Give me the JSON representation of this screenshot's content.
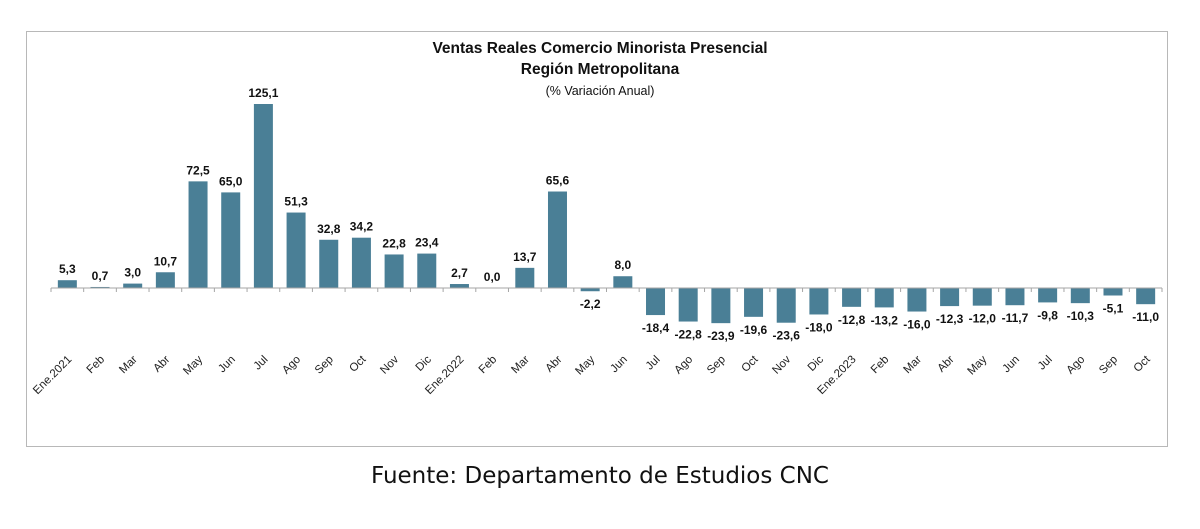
{
  "chart_data": {
    "type": "bar",
    "title": "Ventas Reales Comercio Minorista Presencial",
    "subtitle": "Región Metropolitana",
    "unit_label": "(% Variación Anual)",
    "xlabel": "",
    "ylabel": "",
    "grid": false,
    "legend": "none",
    "bar_color": "#4a7f96",
    "categories": [
      "Ene.2021",
      "Feb",
      "Mar",
      "Abr",
      "May",
      "Jun",
      "Jul",
      "Ago",
      "Sep",
      "Oct",
      "Nov",
      "Dic",
      "Ene.2022",
      "Feb",
      "Mar",
      "Abr",
      "May",
      "Jun",
      "Jul",
      "Ago",
      "Sep",
      "Oct",
      "Nov",
      "Dic",
      "Ene.2023",
      "Feb",
      "Mar",
      "Abr",
      "May",
      "Jun",
      "Jul",
      "Ago",
      "Sep",
      "Oct"
    ],
    "values": [
      5.3,
      0.7,
      3.0,
      10.7,
      72.5,
      65.0,
      125.1,
      51.3,
      32.8,
      34.2,
      22.8,
      23.4,
      2.7,
      0.0,
      13.7,
      65.6,
      -2.2,
      8.0,
      -18.4,
      -22.8,
      -23.9,
      -19.6,
      -23.6,
      -18.0,
      -12.8,
      -13.2,
      -16.0,
      -12.3,
      -12.0,
      -11.7,
      -9.8,
      -10.3,
      -5.1,
      -11.0
    ],
    "data_labels": [
      "5,3",
      "0,7",
      "3,0",
      "10,7",
      "72,5",
      "65,0",
      "125,1",
      "51,3",
      "32,8",
      "34,2",
      "22,8",
      "23,4",
      "2,7",
      "0,0",
      "13,7",
      "65,6",
      "-2,2",
      "8,0",
      "-18,4",
      "-22,8",
      "-23,9",
      "-19,6",
      "-23,6",
      "-18,0",
      "-12,8",
      "-13,2",
      "-16,0",
      "-12,3",
      "-12,0",
      "-11,7",
      "-9,8",
      "-10,3",
      "-5,1",
      "-11,0"
    ],
    "ylim": [
      -30,
      130
    ]
  },
  "footer": {
    "source": "Fuente: Departamento de Estudios CNC"
  }
}
